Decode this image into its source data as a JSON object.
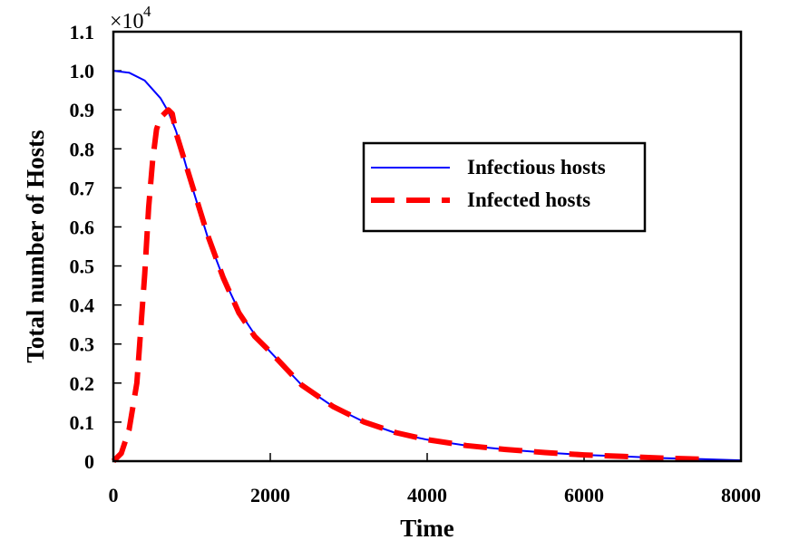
{
  "chart_data": {
    "type": "line",
    "xlabel": "Time",
    "ylabel": "Total number of Hosts",
    "y_scale_label": "×10",
    "y_scale_exponent": "4",
    "xlim": [
      0,
      8000
    ],
    "ylim": [
      0,
      1.1
    ],
    "x_ticks": [
      0,
      2000,
      4000,
      6000,
      8000
    ],
    "x_tick_labels": [
      "0",
      "2000",
      "4000",
      "6000",
      "8000"
    ],
    "y_ticks": [
      0,
      0.1,
      0.2,
      0.3,
      0.4,
      0.5,
      0.6,
      0.7,
      0.8,
      0.9,
      1.0,
      1.1
    ],
    "y_tick_labels": [
      "0",
      "0.1",
      "0.2",
      "0.3",
      "0.4",
      "0.5",
      "0.6",
      "0.7",
      "0.8",
      "0.9",
      "1.0",
      "1.1"
    ],
    "grid": false,
    "legend_position": "upper-right",
    "series": [
      {
        "name": "Infectious hosts",
        "color": "#0000ff",
        "style": "solid",
        "x": [
          0,
          200,
          400,
          600,
          700,
          800,
          1000,
          1200,
          1400,
          1600,
          1800,
          2000,
          2400,
          2800,
          3200,
          3600,
          4000,
          4500,
          5000,
          5500,
          6000,
          6500,
          7000,
          7500,
          8000
        ],
        "y": [
          1.0,
          0.995,
          0.975,
          0.93,
          0.895,
          0.845,
          0.705,
          0.575,
          0.47,
          0.385,
          0.325,
          0.28,
          0.195,
          0.14,
          0.1,
          0.072,
          0.055,
          0.04,
          0.03,
          0.022,
          0.016,
          0.012,
          0.008,
          0.005,
          0.002
        ]
      },
      {
        "name": "Infected hosts",
        "color": "#ff0000",
        "style": "dashed",
        "x": [
          0,
          100,
          200,
          300,
          400,
          450,
          500,
          550,
          600,
          650,
          700,
          750,
          800,
          1000,
          1200,
          1400,
          1600,
          1800,
          2000,
          2400,
          2800,
          3200,
          3600,
          4000,
          4500,
          5000,
          5500,
          6000,
          6500,
          7000,
          7500
        ],
        "y": [
          0,
          0.02,
          0.08,
          0.2,
          0.48,
          0.65,
          0.77,
          0.85,
          0.88,
          0.89,
          0.9,
          0.89,
          0.84,
          0.71,
          0.58,
          0.47,
          0.38,
          0.32,
          0.28,
          0.195,
          0.14,
          0.1,
          0.073,
          0.055,
          0.04,
          0.03,
          0.022,
          0.016,
          0.012,
          0.008,
          0.005
        ]
      }
    ]
  }
}
